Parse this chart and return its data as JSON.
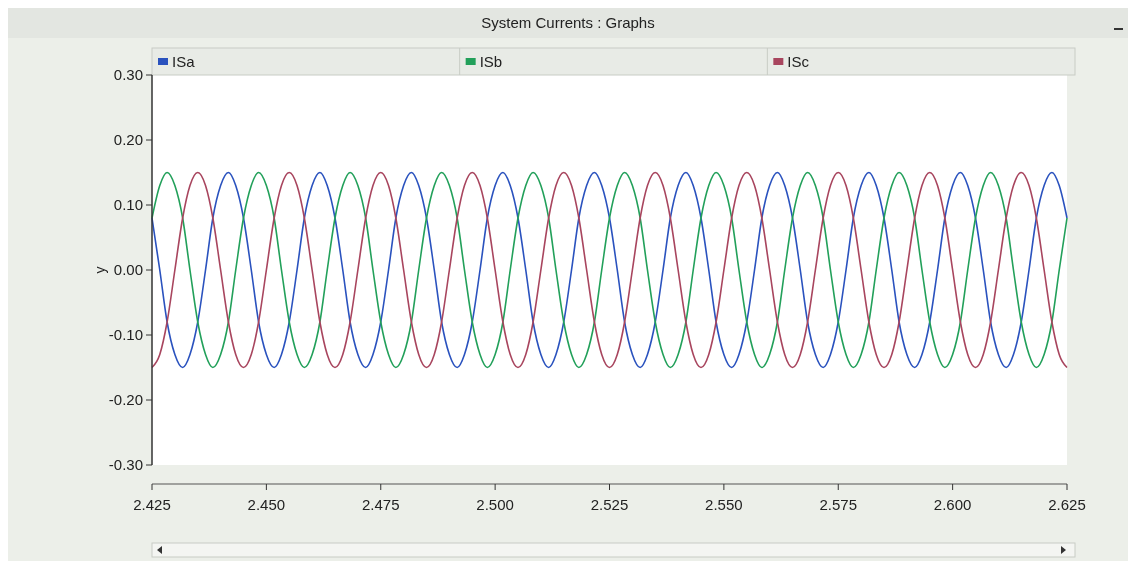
{
  "chart_data": {
    "type": "line",
    "title": "System Currents : Graphs",
    "ylabel": "y",
    "legend": "top",
    "grid": false,
    "marker": "none",
    "line_style": "solid",
    "xlim": [
      2.425,
      2.625
    ],
    "xticks": [
      {
        "value": 2.425,
        "label": "2.425"
      },
      {
        "value": 2.45,
        "label": "2.450"
      },
      {
        "value": 2.475,
        "label": "2.475"
      },
      {
        "value": 2.5,
        "label": "2.500"
      },
      {
        "value": 2.525,
        "label": "2.525"
      },
      {
        "value": 2.55,
        "label": "2.550"
      },
      {
        "value": 2.575,
        "label": "2.575"
      },
      {
        "value": 2.6,
        "label": "2.600"
      },
      {
        "value": 2.625,
        "label": "2.625"
      }
    ],
    "ylim": [
      -0.3,
      0.3
    ],
    "yticks": [
      {
        "value": -0.3,
        "label": "-0.30"
      },
      {
        "value": -0.2,
        "label": "-0.20"
      },
      {
        "value": -0.1,
        "label": "-0.10"
      },
      {
        "value": 0,
        "label": "0.00"
      },
      {
        "value": 0.1,
        "label": "0.10"
      },
      {
        "value": 0.2,
        "label": "0.20"
      },
      {
        "value": 0.3,
        "label": "0.30"
      }
    ],
    "x": [
      2.425,
      2.4267,
      2.4283,
      2.43,
      2.4317,
      2.4333,
      2.435,
      2.4367,
      2.4383,
      2.44,
      2.4417,
      2.4433,
      2.445,
      2.4467,
      2.4483,
      2.45,
      2.4517,
      2.4533,
      2.455,
      2.4567,
      2.4583,
      2.46,
      2.4617,
      2.4633,
      2.465,
      2.4667,
      2.4683,
      2.47,
      2.4717,
      2.4733,
      2.475,
      2.4767,
      2.4783,
      2.48,
      2.4817,
      2.4833,
      2.485,
      2.4867,
      2.4883,
      2.49,
      2.4917,
      2.4933,
      2.495,
      2.4967,
      2.4983,
      2.5,
      2.5017,
      2.5033,
      2.505,
      2.5067,
      2.5083,
      2.51,
      2.5117,
      2.5133,
      2.515,
      2.5167,
      2.5183,
      2.52,
      2.5217,
      2.5233,
      2.525,
      2.5267,
      2.5283,
      2.53,
      2.5317,
      2.5333,
      2.535,
      2.5367,
      2.5383,
      2.54,
      2.5417,
      2.5433,
      2.545,
      2.5467,
      2.5483,
      2.55,
      2.5517,
      2.5533,
      2.555,
      2.5567,
      2.5583,
      2.56,
      2.5617,
      2.5633,
      2.565,
      2.5667,
      2.5683,
      2.57,
      2.5717,
      2.5733,
      2.575,
      2.5767,
      2.5783,
      2.58,
      2.5817,
      2.5833,
      2.585,
      2.5867,
      2.5883,
      2.59,
      2.5917,
      2.5933,
      2.595,
      2.5967,
      2.5983,
      2.6,
      2.6017,
      2.6033,
      2.605,
      2.6067,
      2.6083,
      2.61,
      2.6117,
      2.6133,
      2.615,
      2.6167,
      2.6183,
      2.62,
      2.6217,
      2.6233,
      2.625
    ],
    "series": [
      {
        "name": "ISa",
        "color": "#2a52be",
        "values": [
          0.08,
          0,
          -0.08,
          -0.13,
          -0.15,
          -0.13,
          -0.08,
          0,
          0.08,
          0.13,
          0.15,
          0.13,
          0.08,
          0,
          -0.08,
          -0.13,
          -0.15,
          -0.13,
          -0.08,
          0,
          0.08,
          0.13,
          0.15,
          0.13,
          0.08,
          0,
          -0.08,
          -0.13,
          -0.15,
          -0.13,
          -0.08,
          0,
          0.08,
          0.13,
          0.15,
          0.13,
          0.08,
          0,
          -0.08,
          -0.13,
          -0.15,
          -0.13,
          -0.08,
          0,
          0.08,
          0.13,
          0.15,
          0.13,
          0.08,
          0,
          -0.08,
          -0.13,
          -0.15,
          -0.13,
          -0.08,
          0,
          0.08,
          0.13,
          0.15,
          0.13,
          0.08,
          0,
          -0.08,
          -0.13,
          -0.15,
          -0.13,
          -0.08,
          0,
          0.08,
          0.13,
          0.15,
          0.13,
          0.08,
          0,
          -0.08,
          -0.13,
          -0.15,
          -0.13,
          -0.08,
          0,
          0.08,
          0.13,
          0.15,
          0.13,
          0.08,
          0,
          -0.08,
          -0.13,
          -0.15,
          -0.13,
          -0.08,
          0,
          0.08,
          0.13,
          0.15,
          0.13,
          0.08,
          0,
          -0.08,
          -0.13,
          -0.15,
          -0.13,
          -0.08,
          0,
          0.08,
          0.13,
          0.15,
          0.13,
          0.08,
          0,
          -0.08,
          -0.13,
          -0.15,
          -0.13,
          -0.08,
          0,
          0.08,
          0.13,
          0.15,
          0.13,
          0.08
        ]
      },
      {
        "name": "ISb",
        "color": "#22a05a",
        "values": [
          0.08,
          0.13,
          0.15,
          0.13,
          0.08,
          0,
          -0.08,
          -0.13,
          -0.15,
          -0.13,
          -0.08,
          0,
          0.08,
          0.13,
          0.15,
          0.13,
          0.08,
          0,
          -0.08,
          -0.13,
          -0.15,
          -0.13,
          -0.08,
          0,
          0.08,
          0.13,
          0.15,
          0.13,
          0.08,
          0,
          -0.08,
          -0.13,
          -0.15,
          -0.13,
          -0.08,
          0,
          0.08,
          0.13,
          0.15,
          0.13,
          0.08,
          0,
          -0.08,
          -0.13,
          -0.15,
          -0.13,
          -0.08,
          0,
          0.08,
          0.13,
          0.15,
          0.13,
          0.08,
          0,
          -0.08,
          -0.13,
          -0.15,
          -0.13,
          -0.08,
          0,
          0.08,
          0.13,
          0.15,
          0.13,
          0.08,
          0,
          -0.08,
          -0.13,
          -0.15,
          -0.13,
          -0.08,
          0,
          0.08,
          0.13,
          0.15,
          0.13,
          0.08,
          0,
          -0.08,
          -0.13,
          -0.15,
          -0.13,
          -0.08,
          0,
          0.08,
          0.13,
          0.15,
          0.13,
          0.08,
          0,
          -0.08,
          -0.13,
          -0.15,
          -0.13,
          -0.08,
          0,
          0.08,
          0.13,
          0.15,
          0.13,
          0.08,
          0,
          -0.08,
          -0.13,
          -0.15,
          -0.13,
          -0.08,
          0,
          0.08,
          0.13,
          0.15,
          0.13,
          0.08,
          0,
          -0.08,
          -0.13,
          -0.15,
          -0.13,
          -0.08,
          0,
          0.08
        ]
      },
      {
        "name": "ISc",
        "color": "#a8455e",
        "values": [
          -0.15,
          -0.13,
          -0.08,
          0,
          0.08,
          0.13,
          0.15,
          0.13,
          0.08,
          0,
          -0.08,
          -0.13,
          -0.15,
          -0.13,
          -0.08,
          0,
          0.08,
          0.13,
          0.15,
          0.13,
          0.08,
          0,
          -0.08,
          -0.13,
          -0.15,
          -0.13,
          -0.08,
          0,
          0.08,
          0.13,
          0.15,
          0.13,
          0.08,
          0,
          -0.08,
          -0.13,
          -0.15,
          -0.13,
          -0.08,
          0,
          0.08,
          0.13,
          0.15,
          0.13,
          0.08,
          0,
          -0.08,
          -0.13,
          -0.15,
          -0.13,
          -0.08,
          0,
          0.08,
          0.13,
          0.15,
          0.13,
          0.08,
          0,
          -0.08,
          -0.13,
          -0.15,
          -0.13,
          -0.08,
          0,
          0.08,
          0.13,
          0.15,
          0.13,
          0.08,
          0,
          -0.08,
          -0.13,
          -0.15,
          -0.13,
          -0.08,
          0,
          0.08,
          0.13,
          0.15,
          0.13,
          0.08,
          0,
          -0.08,
          -0.13,
          -0.15,
          -0.13,
          -0.08,
          0,
          0.08,
          0.13,
          0.15,
          0.13,
          0.08,
          0,
          -0.08,
          -0.13,
          -0.15,
          -0.13,
          -0.08,
          0,
          0.08,
          0.13,
          0.15,
          0.13,
          0.08,
          0,
          -0.08,
          -0.13,
          -0.15,
          -0.13,
          -0.08,
          0,
          0.08,
          0.13,
          0.15,
          0.13,
          0.08,
          0,
          -0.08,
          -0.13,
          -0.15
        ]
      }
    ]
  }
}
